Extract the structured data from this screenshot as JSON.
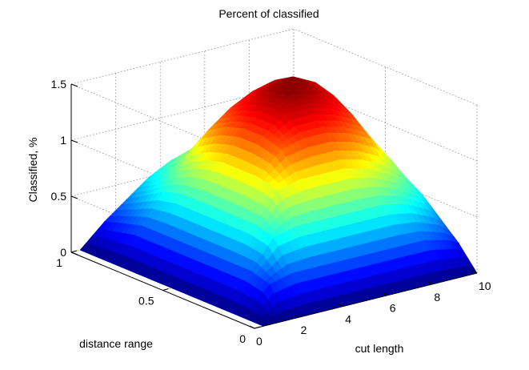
{
  "chart_data": {
    "type": "surface3d",
    "title": "Percent of classified",
    "xlabel": "cut length",
    "ylabel": "distance range",
    "zlabel": "Classified, %",
    "xlim": [
      0,
      10
    ],
    "ylim": [
      0,
      1
    ],
    "zlim": [
      0,
      1.5
    ],
    "xticks": [
      {
        "v": 0,
        "t": "0"
      },
      {
        "v": 2,
        "t": "2"
      },
      {
        "v": 4,
        "t": "4"
      },
      {
        "v": 6,
        "t": "6"
      },
      {
        "v": 8,
        "t": "8"
      },
      {
        "v": 10,
        "t": "10"
      }
    ],
    "yticks": [
      {
        "v": 0,
        "t": "0"
      },
      {
        "v": 0.5,
        "t": "0.5"
      },
      {
        "v": 1,
        "t": "1"
      }
    ],
    "zticks": [
      {
        "v": 0,
        "t": "0"
      },
      {
        "v": 0.5,
        "t": "0.5"
      },
      {
        "v": 1,
        "t": "1"
      },
      {
        "v": 1.5,
        "t": "1.5"
      }
    ],
    "grid": true,
    "colormap": "jet",
    "x": [
      0.4,
      1.5,
      2.5,
      3.5,
      4.5,
      5.5,
      6.5,
      7.5,
      8.5,
      9.5,
      10
    ],
    "y": [
      0,
      0.1,
      0.2,
      0.3,
      0.4,
      0.5,
      0.6,
      0.7,
      0.8,
      0.9,
      1
    ],
    "z": [
      [
        0.0,
        0.0,
        0.0,
        0.0,
        0.0,
        0.0,
        0.0,
        0.0,
        0.0,
        0.0,
        0.0
      ],
      [
        0.0,
        0.25,
        0.3,
        0.3,
        0.3,
        0.3,
        0.3,
        0.3,
        0.3,
        0.25,
        0.2
      ],
      [
        0.0,
        0.3,
        0.55,
        0.6,
        0.6,
        0.6,
        0.6,
        0.6,
        0.55,
        0.45,
        0.35
      ],
      [
        0.0,
        0.3,
        0.6,
        0.85,
        0.9,
        0.9,
        0.9,
        0.85,
        0.75,
        0.6,
        0.5
      ],
      [
        0.0,
        0.3,
        0.6,
        0.9,
        1.1,
        1.15,
        1.15,
        1.1,
        1.0,
        0.75,
        0.6
      ],
      [
        0.0,
        0.3,
        0.6,
        0.9,
        1.15,
        1.3,
        1.3,
        1.25,
        1.15,
        0.85,
        0.65
      ],
      [
        0.0,
        0.3,
        0.6,
        0.9,
        1.15,
        1.3,
        1.4,
        1.35,
        1.25,
        0.95,
        0.7
      ],
      [
        0.0,
        0.3,
        0.6,
        0.85,
        1.1,
        1.25,
        1.35,
        1.4,
        1.3,
        1.0,
        0.75
      ],
      [
        0.0,
        0.3,
        0.55,
        0.75,
        1.0,
        1.15,
        1.25,
        1.3,
        1.25,
        1.0,
        0.75
      ],
      [
        0.0,
        0.25,
        0.45,
        0.6,
        0.75,
        0.85,
        0.95,
        1.0,
        1.0,
        0.8,
        0.6
      ],
      [
        0.0,
        0.2,
        0.35,
        0.5,
        0.6,
        0.65,
        0.7,
        0.75,
        0.75,
        0.6,
        0.45
      ]
    ]
  }
}
